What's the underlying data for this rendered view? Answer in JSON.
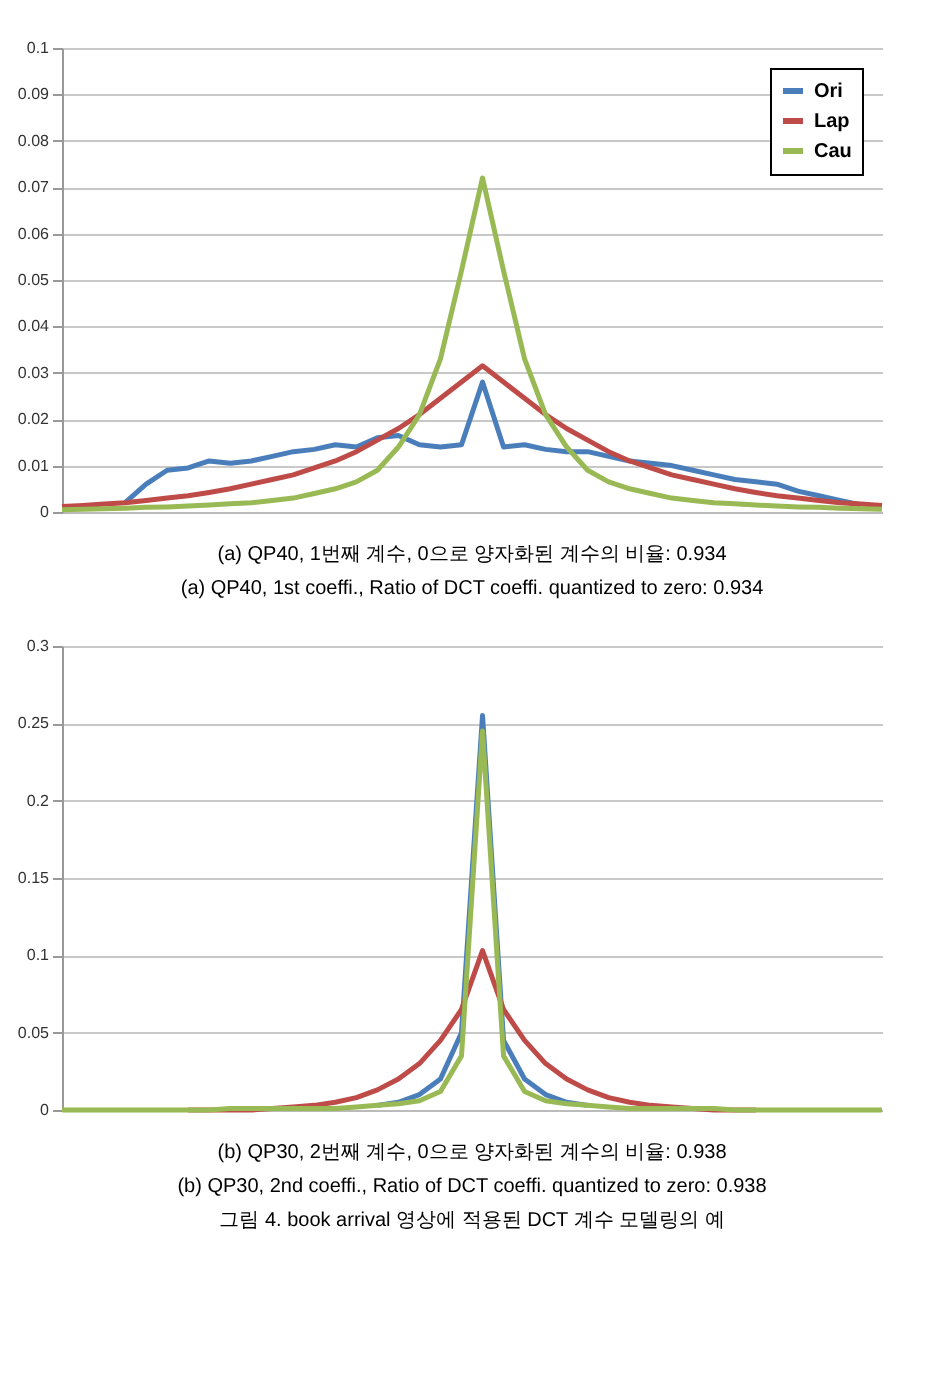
{
  "chart_data": [
    {
      "type": "line",
      "categories": [
        null,
        null,
        null,
        null,
        null,
        null,
        null,
        null,
        null,
        null,
        null,
        null,
        null,
        null,
        null,
        null,
        null,
        null,
        null,
        null,
        null,
        null,
        null,
        null,
        null,
        null,
        null,
        null,
        null,
        null,
        null,
        null,
        null,
        null,
        null,
        null,
        null,
        null,
        null,
        null
      ],
      "ylim": [
        0,
        0.1
      ],
      "yticks": [
        0,
        0.01,
        0.02,
        0.03,
        0.04,
        0.05,
        0.06,
        0.07,
        0.08,
        0.09,
        0.1
      ],
      "grid": "y",
      "legend": "top right",
      "tick_labels": "y",
      "series": [
        {
          "name": "Ori",
          "color": "#4a7ebb",
          "values": [
            null,
            null,
            null,
            0.002,
            0.006,
            0.009,
            0.0095,
            0.011,
            0.0105,
            0.011,
            0.012,
            0.013,
            0.0135,
            0.0145,
            0.014,
            0.016,
            0.0165,
            0.0145,
            0.014,
            0.0145,
            0.028,
            0.014,
            0.0145,
            0.0135,
            0.013,
            0.013,
            0.012,
            0.011,
            0.0105,
            0.01,
            0.009,
            0.008,
            0.007,
            0.0065,
            0.006,
            0.0045,
            0.0035,
            0.0025,
            0.0015,
            null
          ]
        },
        {
          "name": "Lap",
          "color": "#be4b48",
          "values": [
            0.0012,
            0.0014,
            0.0017,
            0.002,
            0.0025,
            0.003,
            0.0035,
            0.0042,
            0.005,
            0.006,
            0.007,
            0.008,
            0.0095,
            0.011,
            0.013,
            0.0155,
            0.018,
            0.021,
            0.0245,
            0.028,
            0.0315,
            0.028,
            0.0245,
            0.021,
            0.018,
            0.0155,
            0.013,
            0.011,
            0.0095,
            0.008,
            0.007,
            0.006,
            0.005,
            0.0042,
            0.0035,
            0.003,
            0.0025,
            0.002,
            0.0017,
            0.0014
          ]
        },
        {
          "name": "Cau",
          "color": "#98b954",
          "values": [
            0.0005,
            0.0006,
            0.0007,
            0.0008,
            0.001,
            0.0011,
            0.0013,
            0.0015,
            0.0018,
            0.002,
            0.0025,
            0.003,
            0.004,
            0.005,
            0.0065,
            0.009,
            0.014,
            0.021,
            0.033,
            0.052,
            0.072,
            0.052,
            0.033,
            0.021,
            0.014,
            0.009,
            0.0065,
            0.005,
            0.004,
            0.003,
            0.0025,
            0.002,
            0.0018,
            0.0015,
            0.0013,
            0.0011,
            0.001,
            0.0008,
            0.0007,
            0.0006
          ]
        }
      ],
      "annotations": [
        "(a) QP40, 1번째 계수, 0으로 양자화된 계수의 비율: 0.934",
        "(a) QP40, 1st coeffi., Ratio of DCT coeffi. quantized to zero: 0.934"
      ]
    },
    {
      "type": "line",
      "categories": [
        null,
        null,
        null,
        null,
        null,
        null,
        null,
        null,
        null,
        null,
        null,
        null,
        null,
        null,
        null,
        null,
        null,
        null,
        null,
        null,
        null,
        null,
        null,
        null,
        null,
        null,
        null,
        null,
        null,
        null,
        null,
        null,
        null,
        null,
        null,
        null,
        null,
        null,
        null,
        null
      ],
      "ylim": [
        0,
        0.3
      ],
      "yticks": [
        0,
        0.05,
        0.1,
        0.15,
        0.2,
        0.25,
        0.3
      ],
      "grid": "y",
      "legend": "top right",
      "tick_labels": "y",
      "series": [
        {
          "name": "Ori",
          "color": "#4a7ebb",
          "values": [
            null,
            null,
            null,
            null,
            null,
            null,
            null,
            null,
            null,
            null,
            null,
            null,
            null,
            null,
            null,
            0.003,
            0.005,
            0.01,
            0.02,
            0.05,
            0.255,
            0.045,
            0.02,
            0.01,
            0.005,
            0.003,
            null,
            null,
            null,
            null,
            null,
            null,
            null,
            null,
            null,
            null,
            null,
            null,
            null,
            null
          ]
        },
        {
          "name": "Lap",
          "color": "#be4b48",
          "values": [
            null,
            null,
            null,
            null,
            null,
            null,
            0,
            0,
            0,
            0,
            0.001,
            0.002,
            0.003,
            0.005,
            0.008,
            0.013,
            0.02,
            0.03,
            0.045,
            0.065,
            0.103,
            0.065,
            0.045,
            0.03,
            0.02,
            0.013,
            0.008,
            0.005,
            0.003,
            0.002,
            0.001,
            0,
            0,
            0,
            null,
            null,
            null,
            null,
            null,
            null
          ]
        },
        {
          "name": "Cau",
          "color": "#98b954",
          "values": [
            0,
            0,
            0,
            0,
            0,
            0,
            0,
            0,
            0.001,
            0.001,
            0.001,
            0.001,
            0.001,
            0.001,
            0.002,
            0.003,
            0.004,
            0.006,
            0.012,
            0.035,
            0.245,
            0.035,
            0.012,
            0.006,
            0.004,
            0.003,
            0.002,
            0.001,
            0.001,
            0.001,
            0.001,
            0.001,
            0,
            0,
            0,
            0,
            0,
            0,
            0,
            0
          ]
        }
      ],
      "annotations": [
        "(b) QP30, 2번째 계수, 0으로 양자화된 계수의 비율: 0.938",
        "(b) QP30, 2nd coeffi., Ratio of DCT coeffi. quantized to zero: 0.938",
        "그림 4. book arrival 영상에 적용된 DCT 계수 모델링의 예"
      ]
    }
  ]
}
